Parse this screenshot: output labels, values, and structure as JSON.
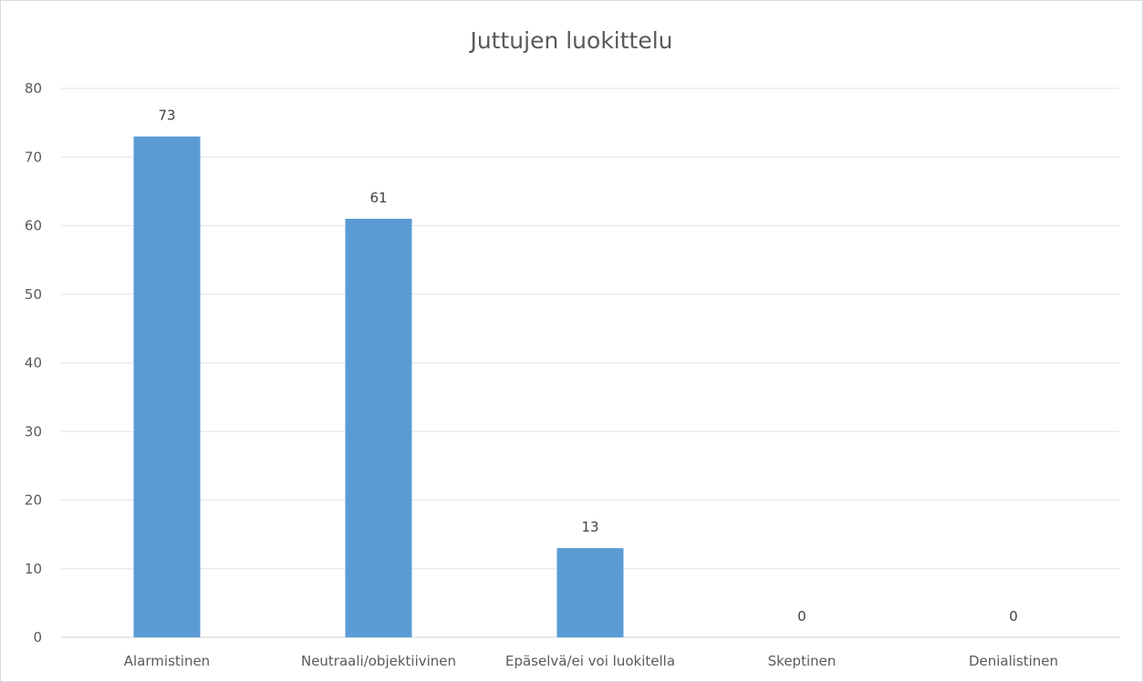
{
  "chart_data": {
    "type": "bar",
    "title": "Juttujen luokittelu",
    "categories": [
      "Alarmistinen",
      "Neutraali/objektiivinen",
      "Epäselvä/ei voi luokitella",
      "Skeptinen",
      "Denialistinen"
    ],
    "values": [
      73,
      61,
      13,
      0,
      0
    ],
    "ylim": [
      0,
      80
    ],
    "yticks": [
      0,
      10,
      20,
      30,
      40,
      50,
      60,
      70,
      80
    ],
    "grid": true,
    "data_labels": true,
    "bar_color": "#5b9bd5",
    "xlabel": "",
    "ylabel": ""
  }
}
